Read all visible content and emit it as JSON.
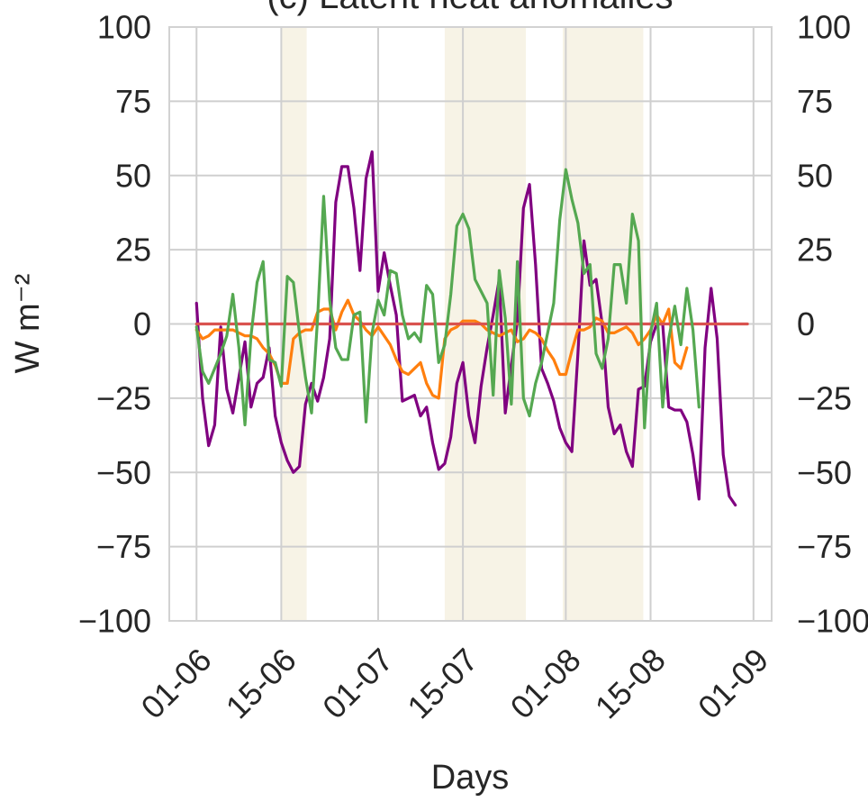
{
  "chart_data": {
    "type": "line",
    "title": "(c) Latent heat anomalies",
    "xlabel": "Days",
    "ylabel": "W m⁻²",
    "x_ticks": [
      "01-06",
      "15-06",
      "01-07",
      "15-07",
      "01-08",
      "15-08",
      "01-09"
    ],
    "x_tick_values": [
      0,
      14,
      30,
      44,
      61,
      75,
      92
    ],
    "xlim": [
      -4.5,
      95
    ],
    "ylim": [
      -100,
      100
    ],
    "y_ticks": [
      -100,
      -75,
      -50,
      -25,
      0,
      25,
      50,
      75,
      100
    ],
    "y_tick_labels": [
      "−100",
      "−75",
      "−50",
      "−25",
      "0",
      "25",
      "50",
      "75",
      "100"
    ],
    "secondary_y_axis": true,
    "grid": true,
    "shaded_periods": [
      {
        "start": 14,
        "end": 18.2
      },
      {
        "start": 41,
        "end": 54.4
      },
      {
        "start": 60.5,
        "end": 73.8
      }
    ],
    "shade_color": "#f7f3e6",
    "series": [
      {
        "color": "#800080",
        "values": [
          7,
          -25,
          -41,
          -34,
          -1,
          -22,
          -30,
          -18,
          -6,
          -28,
          -20,
          -18,
          -8,
          -31,
          -40,
          -46,
          -50,
          -48,
          -27,
          -20,
          -26,
          -18,
          -5,
          41,
          53,
          53,
          39,
          18,
          49,
          58,
          11,
          24,
          13,
          3,
          -26,
          -25,
          -24,
          -31,
          -28,
          -40,
          -49,
          -47,
          -38,
          -20,
          -13,
          -31,
          -40,
          -21,
          -8,
          3,
          15,
          -30,
          -14,
          1,
          39,
          47,
          20,
          -15,
          -20,
          -26,
          -35,
          -40,
          -43,
          -10,
          28,
          13,
          15,
          0,
          -28,
          -37,
          -34,
          -43,
          -48,
          -22,
          -21,
          -6,
          0,
          0,
          -28,
          -29,
          -29,
          -33,
          -44,
          -59,
          -8,
          12,
          -5,
          -44,
          -58,
          -61
        ]
      },
      {
        "color": "#ff7f0e",
        "values": [
          -2,
          -5,
          -4,
          -2,
          -2,
          -2,
          -2,
          -3,
          -4,
          -4,
          -5,
          -8,
          -10,
          -14,
          -20,
          -20,
          -5,
          -3,
          -2,
          -2,
          4,
          5,
          5,
          -2,
          4,
          8,
          3,
          1,
          -2,
          -4,
          -1,
          -4,
          -7,
          -12,
          -16,
          -17,
          -15,
          -13,
          -20,
          -24,
          -25,
          -5,
          -2,
          -1,
          1,
          1,
          1,
          0,
          -2,
          -3,
          -4,
          -3,
          -2,
          -6,
          -5,
          -2,
          -3,
          -5,
          -9,
          -12,
          -17,
          -17,
          -9,
          -2,
          -2,
          -1,
          2,
          1,
          -3,
          -3,
          -2,
          -1,
          -3,
          -7,
          -5,
          -2,
          3,
          0,
          5,
          -13,
          -15,
          -8
        ]
      },
      {
        "color": "#d9534f",
        "values": [
          0,
          0,
          0,
          0,
          0,
          0,
          0,
          0,
          0,
          0,
          0,
          0,
          0,
          0,
          0,
          0,
          0,
          0,
          0,
          0,
          0,
          0,
          0,
          0,
          0,
          0,
          0,
          0,
          0,
          0,
          0,
          0,
          0,
          0,
          0,
          0,
          0,
          0,
          0,
          0,
          0,
          0,
          0,
          0,
          0,
          0,
          0,
          0,
          0,
          0,
          0,
          0,
          0,
          0,
          0,
          0,
          0,
          0,
          0,
          0,
          0,
          0,
          0,
          0,
          0,
          0,
          0,
          0,
          0,
          0,
          0,
          0,
          0,
          0,
          0,
          0,
          0,
          0,
          0,
          0,
          0,
          0,
          0,
          0,
          0,
          0,
          0,
          0,
          0,
          0,
          0,
          0
        ]
      },
      {
        "color": "#55a851",
        "values": [
          -1,
          -16,
          -20,
          -15,
          -10,
          -4,
          10,
          -8,
          -34,
          -4,
          14,
          21,
          -12,
          -13,
          -21,
          16,
          14,
          -3,
          -18,
          -30,
          2,
          43,
          8,
          -8,
          -12,
          -12,
          3,
          4,
          -33,
          -3,
          8,
          3,
          18,
          17,
          3,
          -5,
          -3,
          -6,
          13,
          10,
          -13,
          -7,
          10,
          33,
          37,
          32,
          15,
          11,
          7,
          -24,
          18,
          2,
          -27,
          21,
          -25,
          -31,
          -20,
          -13,
          -3,
          7,
          35,
          52,
          42,
          34,
          17,
          20,
          -10,
          -15,
          -5,
          20,
          20,
          7,
          37,
          28,
          -35,
          -3,
          7,
          -28,
          -5,
          6,
          -7,
          12,
          -2,
          -28
        ]
      }
    ]
  }
}
